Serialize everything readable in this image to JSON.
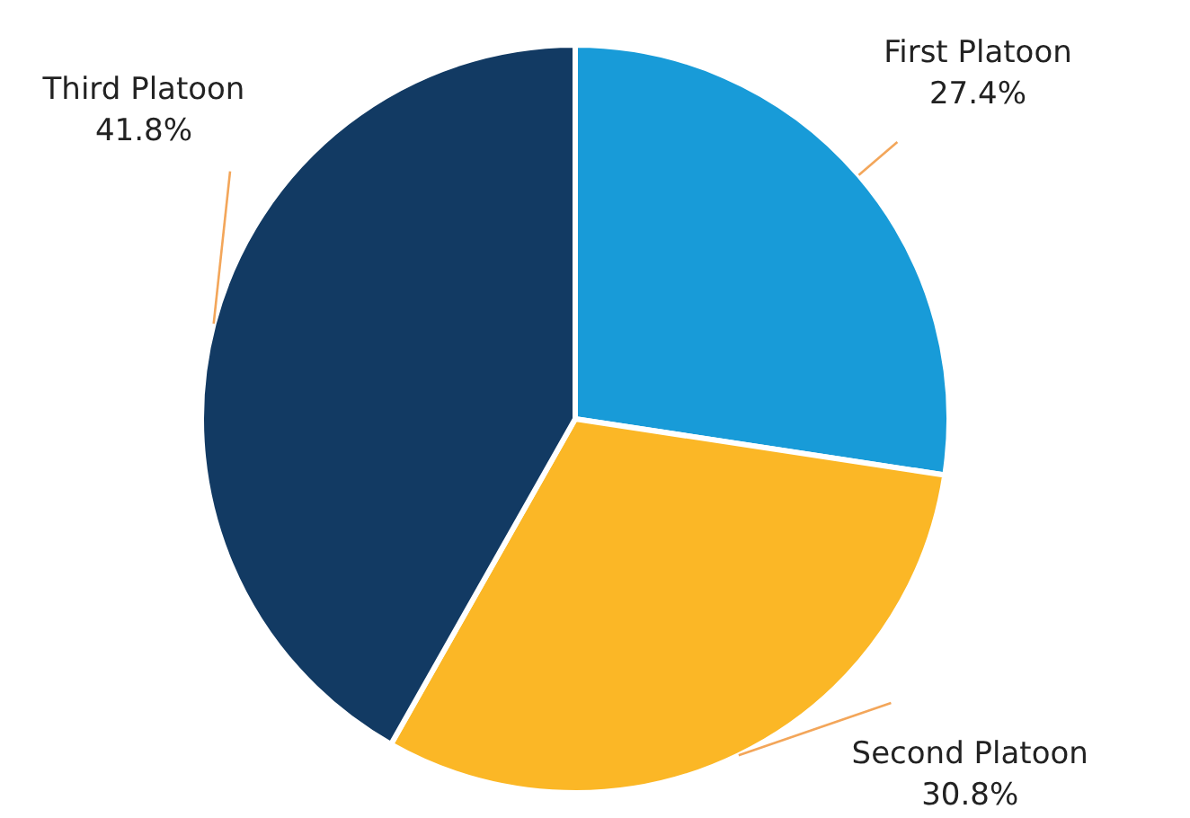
{
  "chart_data": {
    "type": "pie",
    "categories": [
      "First Platoon",
      "Second Platoon",
      "Third Platoon"
    ],
    "values": [
      27.4,
      30.8,
      41.8
    ],
    "colors": [
      "#189bd8",
      "#fbb726",
      "#123a63"
    ],
    "data_labels": true,
    "value_labels": [
      "27.4%",
      "30.8%",
      "41.8%"
    ]
  }
}
